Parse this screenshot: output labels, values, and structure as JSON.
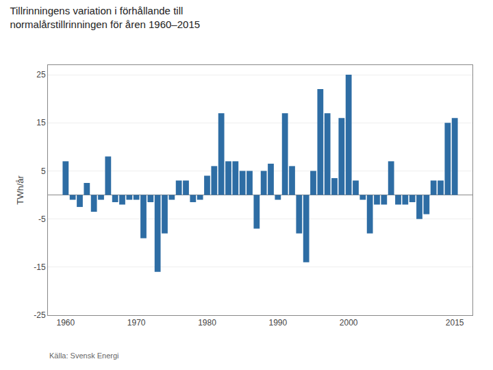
{
  "chart_data": {
    "type": "bar",
    "title": "Tillrinningens variation i förhållande till\nnormalårstillrinningen för åren 1960–2015",
    "ylabel": "TWh/år",
    "annotations": [
      "Källa: Svensk Energi"
    ],
    "color": "#2e6da4",
    "x": [
      1960,
      1961,
      1962,
      1963,
      1964,
      1965,
      1966,
      1967,
      1968,
      1969,
      1970,
      1971,
      1972,
      1973,
      1974,
      1975,
      1976,
      1977,
      1978,
      1979,
      1980,
      1981,
      1982,
      1983,
      1984,
      1985,
      1986,
      1987,
      1988,
      1989,
      1990,
      1991,
      1992,
      1993,
      1994,
      1995,
      1996,
      1997,
      1998,
      1999,
      2000,
      2001,
      2002,
      2003,
      2004,
      2005,
      2006,
      2007,
      2008,
      2009,
      2010,
      2011,
      2012,
      2013,
      2014,
      2015
    ],
    "values": [
      7,
      -1,
      -2.5,
      2.5,
      -3.5,
      -1,
      8,
      -1.5,
      -2,
      -1,
      -1,
      -9,
      -1.5,
      -16,
      -8,
      -1,
      3,
      3,
      -1.5,
      -1,
      4,
      6,
      17,
      7,
      7,
      5,
      5,
      -7,
      5,
      6.5,
      -1,
      17,
      6,
      -8,
      -14,
      5,
      22,
      17,
      3.5,
      16,
      25,
      3,
      -1,
      -8,
      -2,
      -2,
      7,
      -2,
      -2,
      -1.5,
      -5,
      -4,
      3,
      3,
      15,
      16
    ],
    "xlim": [
      1957.5,
      2017.5
    ],
    "xticks": [
      1960,
      1970,
      1980,
      1990,
      2000,
      2015
    ],
    "ylim": [
      -25,
      27
    ],
    "yticks": [
      -25,
      -15,
      -5,
      5,
      15,
      25
    ],
    "grid": true
  }
}
